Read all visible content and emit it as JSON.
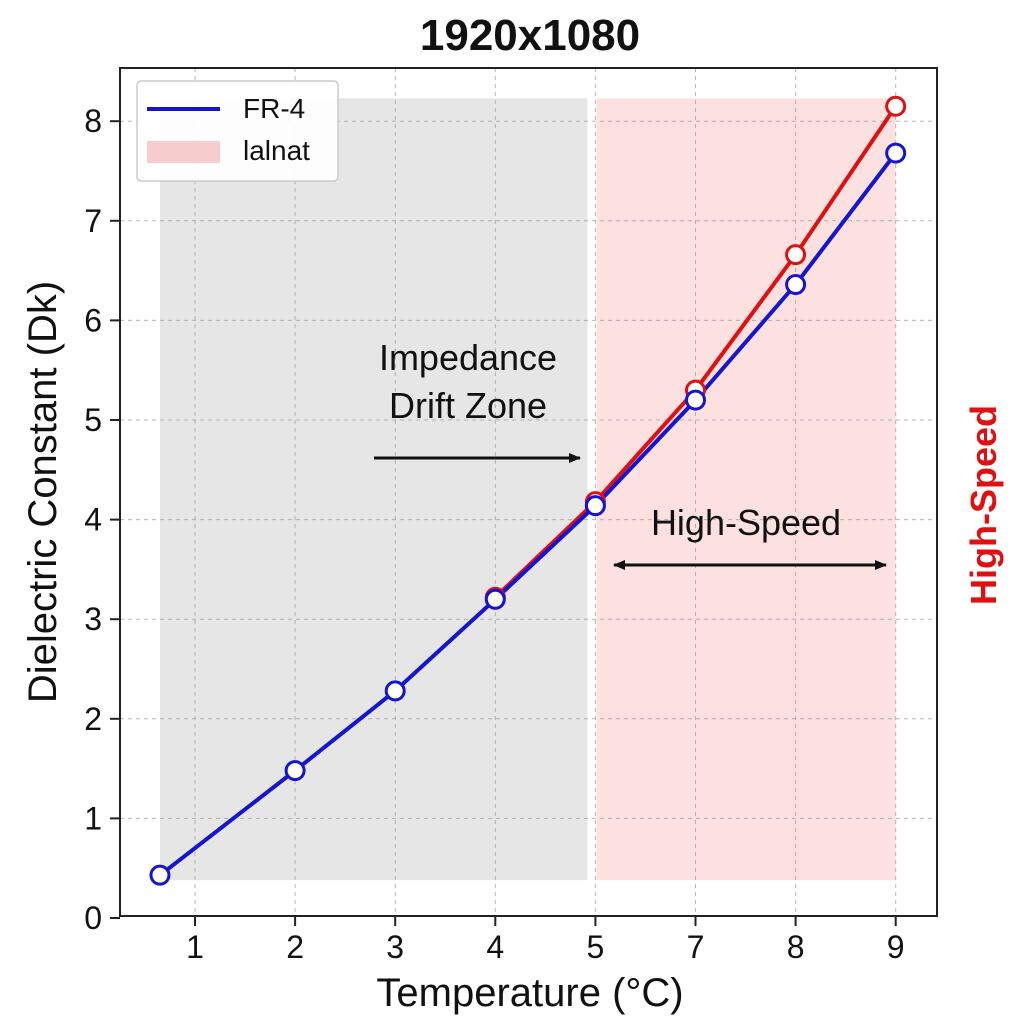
{
  "chart_data": {
    "type": "line",
    "title": "1920x1080",
    "xlabel": "Temperature (°C)",
    "ylabel": "Dielectric Constant (Dk)",
    "right_label": "High-Speed",
    "x_tick_labels": [
      "1",
      "2",
      "3",
      "4",
      "5",
      "7",
      "8",
      "9"
    ],
    "y_ticks": [
      0,
      1,
      2,
      3,
      4,
      5,
      6,
      7,
      8
    ],
    "ylim": [
      0,
      8.4
    ],
    "grid": true,
    "legend_position": "top-left",
    "legend": [
      {
        "label": "FR-4",
        "kind": "line",
        "color": "#1414d2"
      },
      {
        "label": "lalnat",
        "kind": "patch",
        "color": "#f6cccc"
      }
    ],
    "series": [
      {
        "name": "FR-4",
        "color": "#1414d2",
        "points": [
          [
            0.65,
            0.43
          ],
          [
            2,
            1.48
          ],
          [
            3,
            2.28
          ],
          [
            4,
            3.2
          ],
          [
            5,
            4.14
          ],
          [
            6,
            5.2
          ],
          [
            7,
            6.36
          ],
          [
            8,
            7.68
          ]
        ]
      },
      {
        "color": "#e01010",
        "points": [
          [
            4,
            3.22
          ],
          [
            5,
            4.18
          ],
          [
            6,
            5.3
          ],
          [
            7,
            6.66
          ],
          [
            8,
            8.15
          ]
        ]
      }
    ],
    "regions": [
      {
        "label": "Impedance Drift Zone",
        "x_start": 0.65,
        "x_end": 4.92,
        "y_start": 0.38,
        "y_end": 8.23,
        "color": "#e6e6e6"
      },
      {
        "label": "High-Speed",
        "x_start": 5.01,
        "x_end": 8.0,
        "y_start": 0.38,
        "y_end": 8.23,
        "color": "#fde0e0"
      }
    ],
    "annotations": [
      {
        "text": [
          "Impedance",
          "Drift Zone"
        ],
        "arrow": "right"
      },
      {
        "text": [
          "High-Speed"
        ],
        "arrow": "both"
      }
    ],
    "colors": {
      "fr4": "#1414d2",
      "second": "#e01010",
      "gray_zone": "#e6e6e6",
      "red_zone": "#fde0e0"
    }
  }
}
